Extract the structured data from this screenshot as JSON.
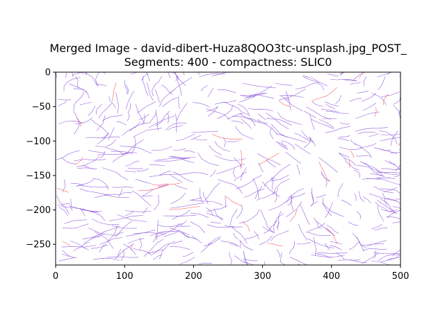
{
  "figure": {
    "title_line1": "Merged Image - david-dibert-Huza8QOO3tc-unsplash.jpg_POST_",
    "title_line2": "Segments: 400 - compactness: SLIC0"
  },
  "chart_data": {
    "type": "image",
    "title": "Merged Image - david-dibert-Huza8QOO3tc-unsplash.jpg_POST_\nSegments: 400 - compactness: SLIC0",
    "xlabel": "",
    "ylabel": "",
    "xlim": [
      0,
      500
    ],
    "ylim": [
      -280,
      0
    ],
    "x_ticks": [
      0,
      100,
      200,
      300,
      400,
      500
    ],
    "y_ticks": [
      0,
      -50,
      -100,
      -150,
      -200,
      -250
    ],
    "grid": false,
    "colors": {
      "purple_lines": "#8a4fd8",
      "red_lines": "#ff4a4a"
    },
    "content": "segmentation boundary line strokes (purple, with some red segments) over white background"
  }
}
